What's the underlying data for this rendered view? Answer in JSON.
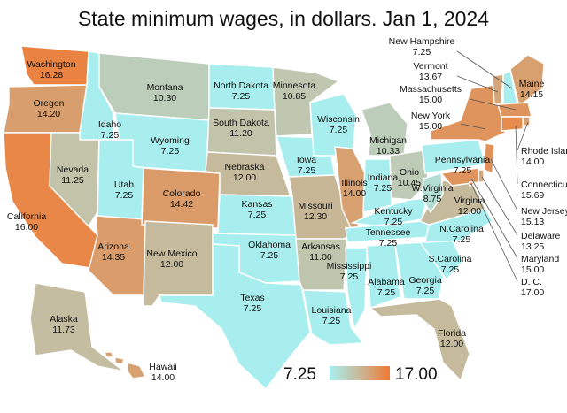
{
  "title": "State minimum wages, in dollars. Jan 1, 2024",
  "legend": {
    "min_label": "7.25",
    "max_label": "17.00",
    "min": 7.25,
    "max": 17.0
  },
  "colors": {
    "low": "#a9eeee",
    "mid": "#c7b99a",
    "high": "#f07a32",
    "border": "#ffffff",
    "leader": "#555555"
  },
  "states": [
    {
      "id": "WA",
      "name": "Washington",
      "wage": "16.28",
      "value": 16.28
    },
    {
      "id": "OR",
      "name": "Oregon",
      "wage": "14.20",
      "value": 14.2
    },
    {
      "id": "CA",
      "name": "California",
      "wage": "16.00",
      "value": 16.0
    },
    {
      "id": "NV",
      "name": "Nevada",
      "wage": "11.25",
      "value": 11.25
    },
    {
      "id": "ID",
      "name": "Idaho",
      "wage": "7.25",
      "value": 7.25
    },
    {
      "id": "MT",
      "name": "Montana",
      "wage": "10.30",
      "value": 10.3
    },
    {
      "id": "WY",
      "name": "Wyoming",
      "wage": "7.25",
      "value": 7.25
    },
    {
      "id": "UT",
      "name": "Utah",
      "wage": "7.25",
      "value": 7.25
    },
    {
      "id": "AZ",
      "name": "Arizona",
      "wage": "14.35",
      "value": 14.35
    },
    {
      "id": "CO",
      "name": "Colorado",
      "wage": "14.42",
      "value": 14.42
    },
    {
      "id": "NM",
      "name": "New Mexico",
      "wage": "12.00",
      "value": 12.0
    },
    {
      "id": "ND",
      "name": "North Dakota",
      "wage": "7.25",
      "value": 7.25
    },
    {
      "id": "SD",
      "name": "South Dakota",
      "wage": "11.20",
      "value": 11.2
    },
    {
      "id": "NE",
      "name": "Nebraska",
      "wage": "12.00",
      "value": 12.0
    },
    {
      "id": "KS",
      "name": "Kansas",
      "wage": "7.25",
      "value": 7.25
    },
    {
      "id": "OK",
      "name": "Oklahoma",
      "wage": "7.25",
      "value": 7.25
    },
    {
      "id": "TX",
      "name": "Texas",
      "wage": "7.25",
      "value": 7.25
    },
    {
      "id": "MN",
      "name": "Minnesota",
      "wage": "10.85",
      "value": 10.85
    },
    {
      "id": "IA",
      "name": "Iowa",
      "wage": "7.25",
      "value": 7.25
    },
    {
      "id": "MO",
      "name": "Missouri",
      "wage": "12.30",
      "value": 12.3
    },
    {
      "id": "AR",
      "name": "Arkansas",
      "wage": "11.00",
      "value": 11.0
    },
    {
      "id": "LA",
      "name": "Louisiana",
      "wage": "7.25",
      "value": 7.25
    },
    {
      "id": "WI",
      "name": "Wisconsin",
      "wage": "7.25",
      "value": 7.25
    },
    {
      "id": "IL",
      "name": "Illinois",
      "wage": "14.00",
      "value": 14.0
    },
    {
      "id": "MI",
      "name": "Michigan",
      "wage": "10.33",
      "value": 10.33
    },
    {
      "id": "IN",
      "name": "Indiana",
      "wage": "7.25",
      "value": 7.25
    },
    {
      "id": "OH",
      "name": "Ohio",
      "wage": "10.45",
      "value": 10.45
    },
    {
      "id": "KY",
      "name": "Kentucky",
      "wage": "7.25",
      "value": 7.25
    },
    {
      "id": "TN",
      "name": "Tennessee",
      "wage": "7.25",
      "value": 7.25
    },
    {
      "id": "MS",
      "name": "Mississippi",
      "wage": "7.25",
      "value": 7.25
    },
    {
      "id": "AL",
      "name": "Alabama",
      "wage": "7.25",
      "value": 7.25
    },
    {
      "id": "GA",
      "name": "Georgia",
      "wage": "7.25",
      "value": 7.25
    },
    {
      "id": "FL",
      "name": "Florida",
      "wage": "12.00",
      "value": 12.0
    },
    {
      "id": "SC",
      "name": "S.Carolina",
      "wage": "7.25",
      "value": 7.25
    },
    {
      "id": "NC",
      "name": "N.Carolina",
      "wage": "7.25",
      "value": 7.25
    },
    {
      "id": "VA",
      "name": "Virginia",
      "wage": "12.00",
      "value": 12.0
    },
    {
      "id": "WV",
      "name": "W.Virginia",
      "wage": "8.75",
      "value": 8.75
    },
    {
      "id": "PA",
      "name": "Pennsylvania",
      "wage": "7.25",
      "value": 7.25
    },
    {
      "id": "NY",
      "name": "New York",
      "wage": "15.00",
      "value": 15.0
    },
    {
      "id": "VT",
      "name": "Vermont",
      "wage": "13.67",
      "value": 13.67
    },
    {
      "id": "NH",
      "name": "New Hampshire",
      "wage": "7.25",
      "value": 7.25
    },
    {
      "id": "ME",
      "name": "Maine",
      "wage": "14.15",
      "value": 14.15
    },
    {
      "id": "MA",
      "name": "Massachusetts",
      "wage": "15.00",
      "value": 15.0
    },
    {
      "id": "RI",
      "name": "Rhode Island",
      "wage": "14.00",
      "value": 14.0
    },
    {
      "id": "CT",
      "name": "Connecticut",
      "wage": "15.69",
      "value": 15.69
    },
    {
      "id": "NJ",
      "name": "New Jersey",
      "wage": "15.13",
      "value": 15.13
    },
    {
      "id": "DE",
      "name": "Delaware",
      "wage": "13.25",
      "value": 13.25
    },
    {
      "id": "MD",
      "name": "Maryland",
      "wage": "15.00",
      "value": 15.0
    },
    {
      "id": "DC",
      "name": "D. C.",
      "wage": "17.00",
      "value": 17.0
    },
    {
      "id": "AK",
      "name": "Alaska",
      "wage": "11.73",
      "value": 11.73
    },
    {
      "id": "HI",
      "name": "Hawaii",
      "wage": "14.00",
      "value": 14.0
    }
  ]
}
